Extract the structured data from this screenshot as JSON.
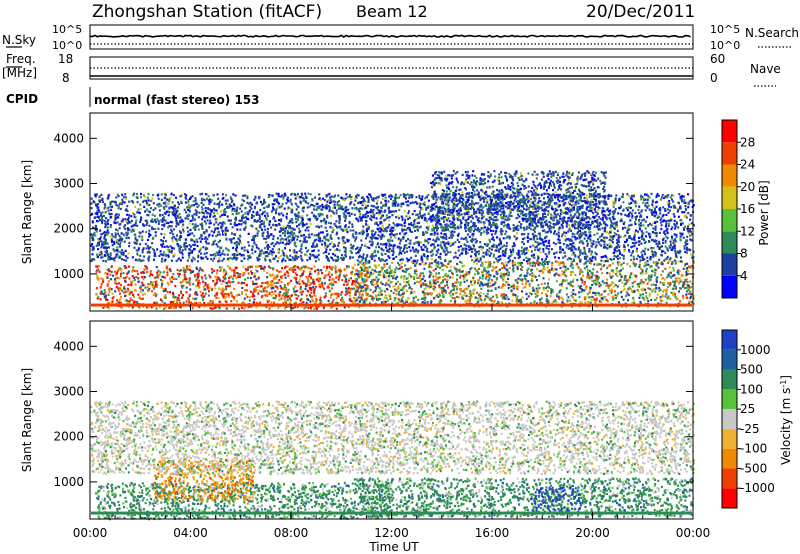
{
  "header": {
    "station": "Zhongshan Station (fitACF)",
    "beam": "Beam 12",
    "date": "20/Dec/2011"
  },
  "strip_panels": {
    "nsky": {
      "left_label": "N.Sky",
      "left_ticks": [
        "10^5",
        "10^0"
      ],
      "right_ticks": [
        "10^5",
        "10^0"
      ],
      "right_label": "N.Search"
    },
    "freq": {
      "left_label_top": "Freq.",
      "left_label_bottom": "[MHz]",
      "left_ticks": [
        "18",
        "8"
      ],
      "right_ticks": [
        "60",
        "0"
      ],
      "right_label": "Nave"
    },
    "cpid": {
      "label": "CPID",
      "text": "normal (fast stereo) 153"
    }
  },
  "chart_data": [
    {
      "type": "heatmap",
      "name": "power",
      "xlabel": "Time UT",
      "ylabel": "Slant Range [km]",
      "x_ticks": [
        "00:00",
        "04:00",
        "08:00",
        "12:00",
        "16:00",
        "20:00",
        "00:00"
      ],
      "xlim_hours": [
        0,
        24
      ],
      "y_ticks": [
        1000,
        2000,
        3000,
        4000
      ],
      "ylim": [
        180,
        4560
      ],
      "colorbar": {
        "label": "Power [dB]",
        "ticks": [
          "28",
          "24",
          "20",
          "16",
          "12",
          "8",
          "4"
        ],
        "colors": [
          "#0000ff",
          "#1e3fa0",
          "#2e8b57",
          "#55c23a",
          "#d4c21a",
          "#f08a00",
          "#f04000",
          "#ff0000"
        ]
      },
      "scatter_regions": [
        {
          "from_hour": 0.2,
          "to_hour": 11.0,
          "range_km": [
            250,
            1200
          ],
          "level": "high"
        },
        {
          "from_hour": 10.5,
          "to_hour": 24.0,
          "range_km": [
            300,
            1300
          ],
          "level": "medium"
        },
        {
          "from_hour": 0.0,
          "to_hour": 24.0,
          "range_km": [
            1300,
            2800
          ],
          "level": "low"
        },
        {
          "from_hour": 13.5,
          "to_hour": 20.5,
          "range_km": [
            2000,
            3300
          ],
          "level": "low"
        }
      ]
    },
    {
      "type": "heatmap",
      "name": "velocity",
      "xlabel": "Time UT",
      "ylabel": "Slant Range [km]",
      "x_ticks": [
        "00:00",
        "04:00",
        "08:00",
        "12:00",
        "16:00",
        "20:00",
        "00:00"
      ],
      "xlim_hours": [
        0,
        24
      ],
      "y_ticks": [
        1000,
        2000,
        3000,
        4000
      ],
      "ylim": [
        180,
        4560
      ],
      "colorbar": {
        "label": "Velocity [m s",
        "label_sup": "-1",
        "label_end": "]",
        "ticks": [
          "1000",
          "500",
          "100",
          "25",
          "-25",
          "-100",
          "-500",
          "-1000"
        ],
        "colors": [
          "#ff0000",
          "#f04000",
          "#f08a00",
          "#f0b030",
          "#c8c8c8",
          "#55c23a",
          "#2e8b57",
          "#1e5fa0",
          "#1e3fc8"
        ]
      },
      "scatter_regions": [
        {
          "from_hour": 0.2,
          "to_hour": 12.0,
          "range_km": [
            200,
            1000
          ],
          "level": "green"
        },
        {
          "from_hour": 2.5,
          "to_hour": 6.5,
          "range_km": [
            600,
            1500
          ],
          "level": "orange"
        },
        {
          "from_hour": 10.5,
          "to_hour": 24.0,
          "range_km": [
            250,
            1100
          ],
          "level": "green"
        },
        {
          "from_hour": 17.5,
          "to_hour": 19.5,
          "range_km": [
            300,
            900
          ],
          "level": "blue"
        },
        {
          "from_hour": 0.0,
          "to_hour": 24.0,
          "range_km": [
            1200,
            2800
          ],
          "level": "gray"
        }
      ]
    }
  ]
}
